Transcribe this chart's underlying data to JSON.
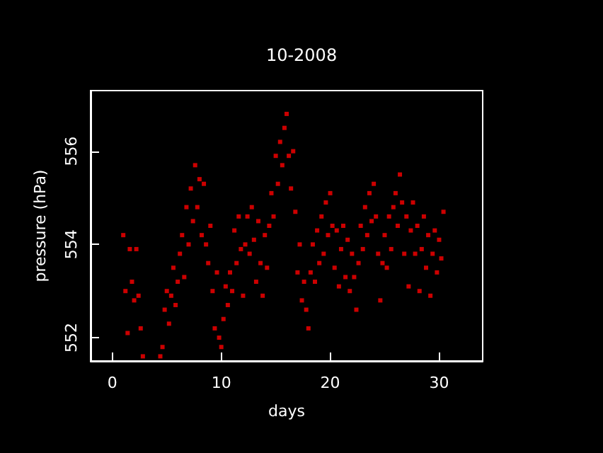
{
  "chart_data": {
    "type": "scatter",
    "title": "10-2008",
    "xlabel": "days",
    "ylabel": "pressure (hPa)",
    "xlim": [
      -2,
      34
    ],
    "xticks": [
      0,
      10,
      20,
      30
    ],
    "ylim": [
      551.5,
      557.3
    ],
    "yticks": [
      552,
      554,
      556
    ],
    "marker": "square",
    "series": [
      {
        "color": "#ff0000",
        "x": [
          1.0,
          1.2,
          1.4,
          1.6,
          1.8,
          2.0,
          2.2,
          2.4,
          2.6,
          2.8,
          4.4,
          4.6,
          4.8,
          5.0,
          5.2,
          5.4,
          5.6,
          5.8,
          6.0,
          6.2,
          6.4,
          6.6,
          6.8,
          7.0,
          7.2,
          7.4,
          7.6,
          7.8,
          8.0,
          8.2,
          8.4,
          8.6,
          8.8,
          9.0,
          9.2,
          9.4,
          9.6,
          9.8,
          10.0,
          10.2,
          10.4,
          10.6,
          10.8,
          11.0,
          11.2,
          11.4,
          11.6,
          11.8,
          12.0,
          12.2,
          12.4,
          12.6,
          12.8,
          13.0,
          13.2,
          13.4,
          13.6,
          13.8,
          14.0,
          14.2,
          14.4,
          14.6,
          14.8,
          15.0,
          15.2,
          15.4,
          15.6,
          15.8,
          16.0,
          16.2,
          16.4,
          16.6,
          16.8,
          17.0,
          17.2,
          17.4,
          17.6,
          17.8,
          18.0,
          18.2,
          18.4,
          18.6,
          18.8,
          19.0,
          19.2,
          19.4,
          19.6,
          19.8,
          20.0,
          20.2,
          20.4,
          20.6,
          20.8,
          21.0,
          21.2,
          21.4,
          21.6,
          21.8,
          22.0,
          22.2,
          22.4,
          22.6,
          22.8,
          23.0,
          23.2,
          23.4,
          23.6,
          23.8,
          24.0,
          24.2,
          24.4,
          24.6,
          24.8,
          25.0,
          25.2,
          25.4,
          25.6,
          25.8,
          26.0,
          26.2,
          26.4,
          26.6,
          26.8,
          27.0,
          27.2,
          27.4,
          27.6,
          27.8,
          28.0,
          28.2,
          28.4,
          28.6,
          28.8,
          29.0,
          29.2,
          29.4,
          29.6,
          29.8,
          30.0,
          30.2,
          30.4
        ],
        "values": [
          554.2,
          553.0,
          552.1,
          553.9,
          553.2,
          552.8,
          553.9,
          552.9,
          552.2,
          551.6,
          551.6,
          551.8,
          552.6,
          553.0,
          552.3,
          552.9,
          553.5,
          552.7,
          553.2,
          553.8,
          554.2,
          553.3,
          554.8,
          554.0,
          555.2,
          554.5,
          555.7,
          554.8,
          555.4,
          554.2,
          555.3,
          554.0,
          553.6,
          554.4,
          553.0,
          552.2,
          553.4,
          552.0,
          551.8,
          552.4,
          553.1,
          552.7,
          553.4,
          553.0,
          554.3,
          553.6,
          554.6,
          553.9,
          552.9,
          554.0,
          554.6,
          553.8,
          554.8,
          554.1,
          553.2,
          554.5,
          553.6,
          552.9,
          554.2,
          553.5,
          554.4,
          555.1,
          554.6,
          555.9,
          555.3,
          556.2,
          555.7,
          556.5,
          556.8,
          555.9,
          555.2,
          556.0,
          554.7,
          553.4,
          554.0,
          552.8,
          553.2,
          552.6,
          552.2,
          553.4,
          554.0,
          553.2,
          554.3,
          553.6,
          554.6,
          553.8,
          554.9,
          554.2,
          555.1,
          554.4,
          553.5,
          554.3,
          553.1,
          553.9,
          554.4,
          553.3,
          554.1,
          553.0,
          553.8,
          553.3,
          552.6,
          553.6,
          554.4,
          553.9,
          554.8,
          554.2,
          555.1,
          554.5,
          555.3,
          554.6,
          553.8,
          552.8,
          553.6,
          554.2,
          553.5,
          554.6,
          553.9,
          554.8,
          555.1,
          554.4,
          555.5,
          554.9,
          553.8,
          554.6,
          553.1,
          554.3,
          554.9,
          553.8,
          554.4,
          553.0,
          553.9,
          554.6,
          553.5,
          554.2,
          552.9,
          553.8,
          554.3,
          553.4,
          554.1,
          553.7,
          554.7
        ]
      }
    ]
  }
}
